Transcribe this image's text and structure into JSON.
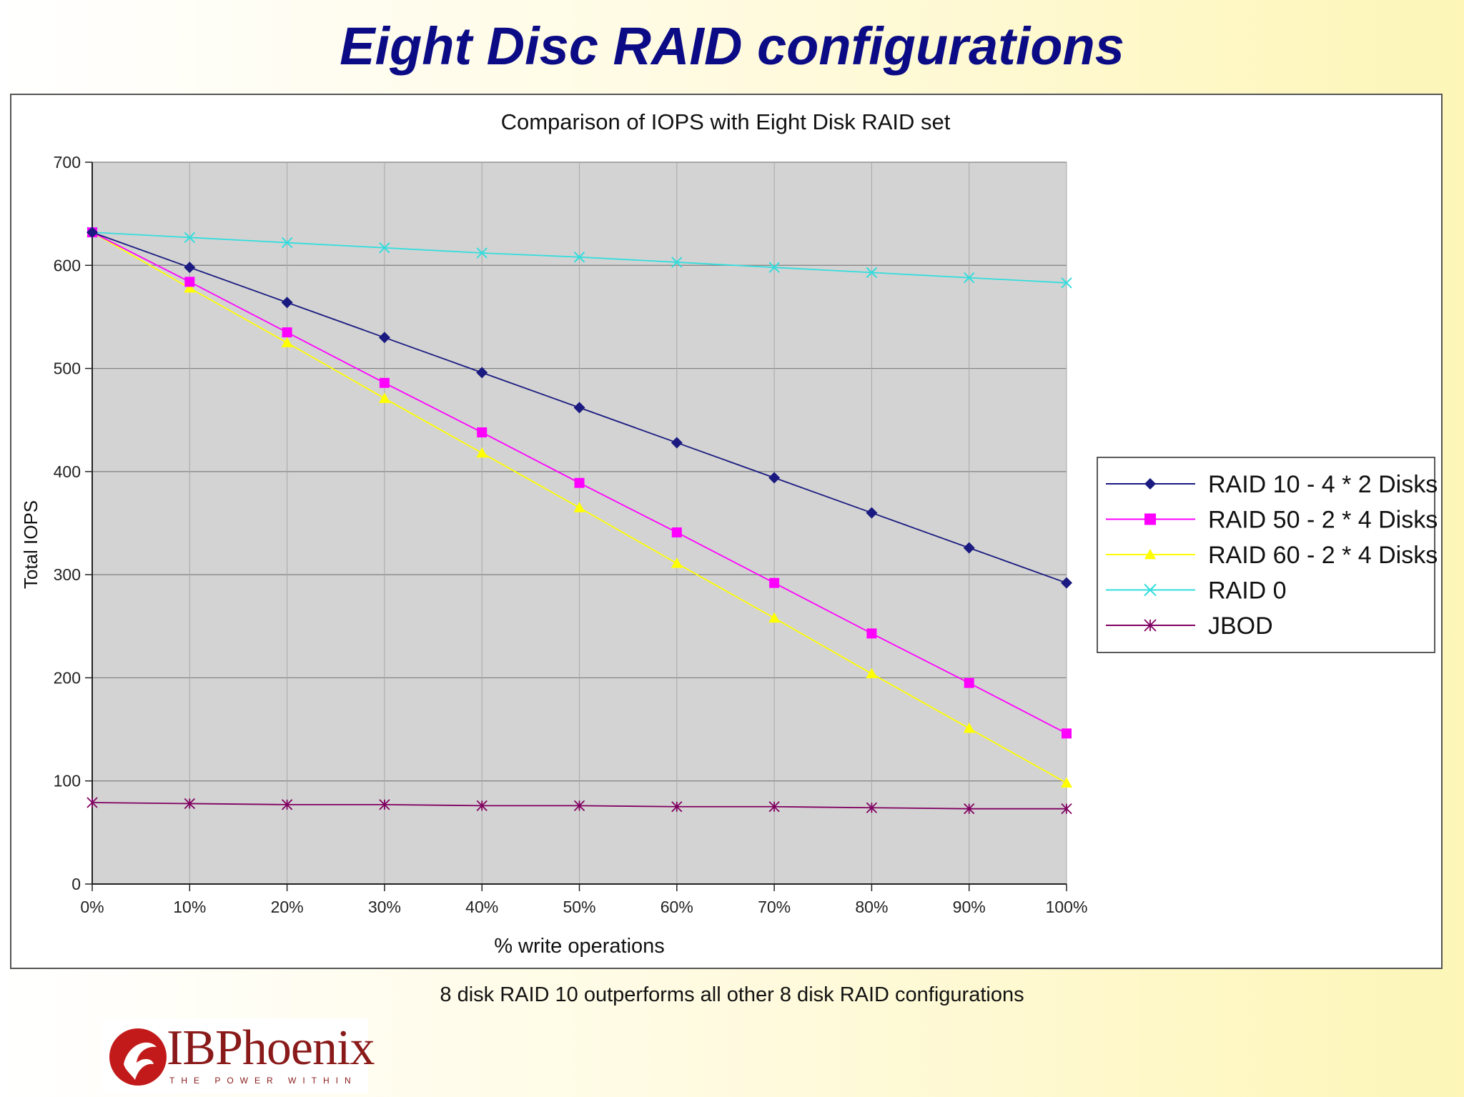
{
  "slide": {
    "title": "Eight Disc RAID configurations",
    "caption": "8 disk RAID 10 outperforms all other 8 disk RAID configurations",
    "logo": {
      "name": "IBPhoenix",
      "tagline": "THE POWER WITHIN",
      "icon": "phoenix-icon"
    }
  },
  "chart_data": {
    "type": "line",
    "title": "Comparison of IOPS with Eight Disk RAID set",
    "xlabel": "% write operations",
    "ylabel": "Total IOPS",
    "categories": [
      "0%",
      "10%",
      "20%",
      "30%",
      "40%",
      "50%",
      "60%",
      "70%",
      "80%",
      "90%",
      "100%"
    ],
    "ylim": [
      0,
      700
    ],
    "yticks": [
      "0",
      "100",
      "200",
      "300",
      "400",
      "500",
      "600",
      "700"
    ],
    "grid": true,
    "legend_position": "right",
    "series": [
      {
        "name": "RAID 10 - 4 * 2 Disks",
        "color": "#1a1a80",
        "marker": "diamond",
        "values": [
          632,
          598,
          564,
          530,
          496,
          462,
          428,
          394,
          360,
          326,
          292
        ]
      },
      {
        "name": "RAID 50 - 2 * 4 Disks",
        "color": "#ff00ff",
        "marker": "square",
        "values": [
          632,
          584,
          535,
          486,
          438,
          389,
          341,
          292,
          243,
          195,
          146
        ]
      },
      {
        "name": "RAID 60 - 2 * 4 Disks",
        "color": "#ffff00",
        "marker": "triangle",
        "values": [
          632,
          578,
          525,
          471,
          418,
          365,
          311,
          258,
          204,
          151,
          98
        ]
      },
      {
        "name": "RAID 0",
        "color": "#33dddd",
        "marker": "x",
        "values": [
          632,
          627,
          622,
          617,
          612,
          608,
          603,
          598,
          593,
          588,
          583
        ]
      },
      {
        "name": "JBOD",
        "color": "#800060",
        "marker": "asterisk",
        "values": [
          79,
          78,
          77,
          77,
          76,
          76,
          75,
          75,
          74,
          73,
          73
        ]
      }
    ]
  }
}
